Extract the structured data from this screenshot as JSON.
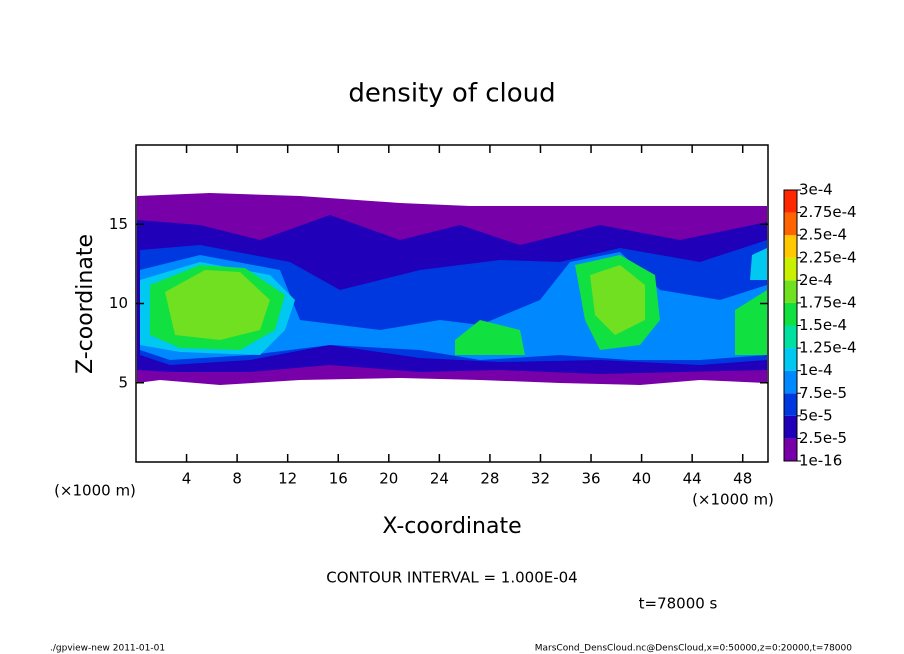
{
  "chart_data": {
    "type": "contour",
    "title": "density of cloud",
    "xlabel": "X-coordinate",
    "ylabel": "Z-coordinate",
    "xunit": "(×1000 m)",
    "yunit": "(×1000 m)",
    "xlim": [
      0,
      50
    ],
    "ylim": [
      0,
      20
    ],
    "xticks": [
      4,
      8,
      12,
      16,
      20,
      24,
      28,
      32,
      36,
      40,
      44,
      48
    ],
    "yticks": [
      5,
      10,
      15
    ],
    "colorbar": {
      "ticks": [
        {
          "value": 1e-16,
          "label": "1e-16"
        },
        {
          "value": 2.5e-05,
          "label": "2.5e-5"
        },
        {
          "value": 5e-05,
          "label": "5e-5"
        },
        {
          "value": 7.5e-05,
          "label": "7.5e-5"
        },
        {
          "value": 0.0001,
          "label": "1e-4"
        },
        {
          "value": 0.000125,
          "label": "1.25e-4"
        },
        {
          "value": 0.00015,
          "label": "1.5e-4"
        },
        {
          "value": 0.000175,
          "label": "1.75e-4"
        },
        {
          "value": 0.0002,
          "label": "2e-4"
        },
        {
          "value": 0.000225,
          "label": "2.25e-4"
        },
        {
          "value": 0.00025,
          "label": "2.5e-4"
        },
        {
          "value": 0.000275,
          "label": "2.75e-4"
        },
        {
          "value": 0.0003,
          "label": "3e-4"
        }
      ],
      "colors": [
        "#7800a8",
        "#2000b8",
        "#0038e0",
        "#0088ff",
        "#00c8f0",
        "#00e0a0",
        "#10e040",
        "#70e020",
        "#c8f000",
        "#ffc800",
        "#ff6400",
        "#ff2800",
        "#ff8080"
      ]
    },
    "contour_interval": "CONTOUR INTERVAL = 1.000E-04",
    "time_label": "t=78000 s",
    "footer_left": "./gpview-new   2011-01-01",
    "footer_right": "MarsCond_DensCloud.nc@DensCloud,x=0:50000,z=0:20000,t=78000"
  }
}
